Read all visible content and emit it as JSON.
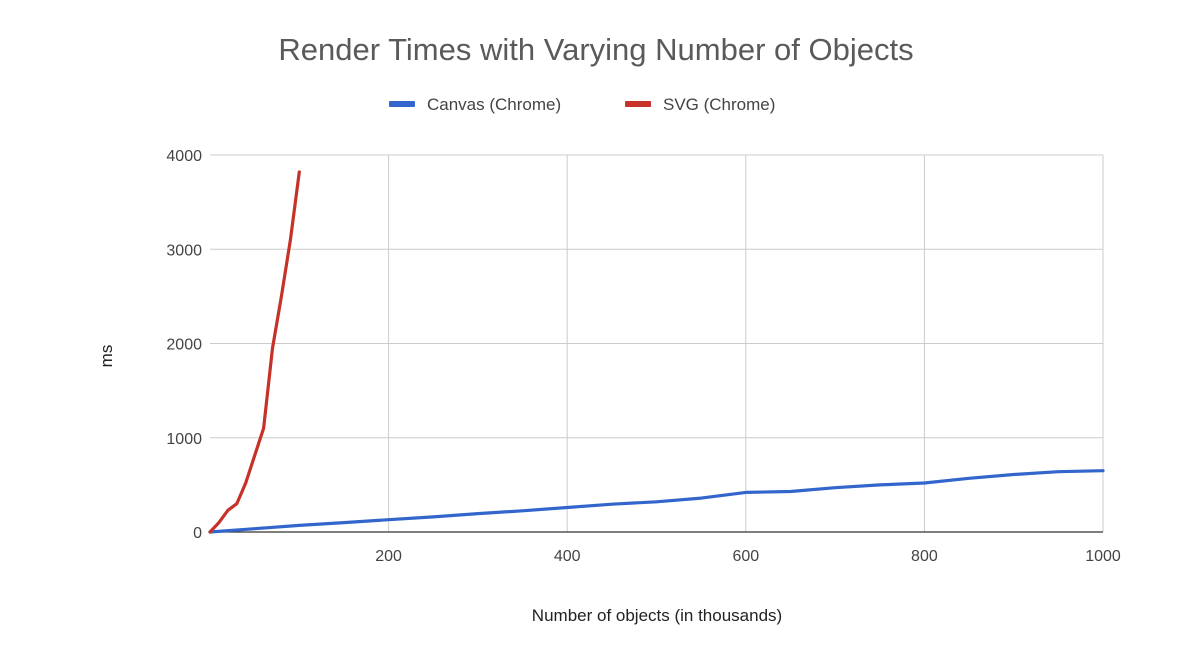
{
  "chart_data": {
    "type": "line",
    "title": "Render Times with Varying Number of Objects",
    "xlabel": "Number of objects (in thousands)",
    "ylabel": "ms",
    "xlim": [
      0,
      1000
    ],
    "ylim": [
      0,
      4000
    ],
    "xticks": [
      200,
      400,
      600,
      800,
      1000
    ],
    "yticks": [
      0,
      1000,
      2000,
      3000,
      4000
    ],
    "grid": true,
    "legend_position": "top",
    "series": [
      {
        "name": "Canvas (Chrome)",
        "color": "#3366cc",
        "x": [
          0,
          50,
          100,
          150,
          200,
          250,
          300,
          350,
          400,
          450,
          500,
          550,
          600,
          650,
          700,
          750,
          800,
          850,
          900,
          950,
          1000
        ],
        "y": [
          0,
          35,
          70,
          100,
          130,
          160,
          195,
          225,
          260,
          295,
          320,
          360,
          420,
          430,
          470,
          500,
          520,
          570,
          610,
          640,
          650
        ]
      },
      {
        "name": "SVG (Chrome)",
        "color": "#c63228",
        "x": [
          0,
          10,
          20,
          30,
          40,
          60,
          70,
          80,
          90,
          100
        ],
        "y": [
          0,
          100,
          230,
          300,
          520,
          1100,
          1950,
          2500,
          3100,
          3820
        ]
      }
    ]
  }
}
